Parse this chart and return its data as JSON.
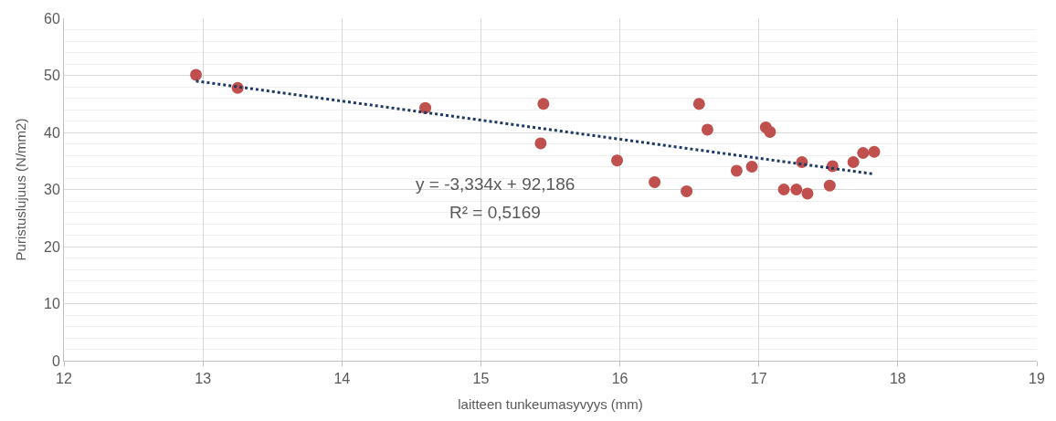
{
  "chart_data": {
    "type": "scatter",
    "xlabel": "laitteen tunkeumasyvyys (mm)",
    "ylabel": "Puristuslujuus (N/mm2)",
    "xlim": [
      12,
      19
    ],
    "xticks": [
      12,
      13,
      14,
      15,
      16,
      17,
      18,
      19
    ],
    "ylim": [
      0,
      60
    ],
    "yticks": [
      0,
      10,
      20,
      30,
      40,
      50,
      60
    ],
    "grid": true,
    "legend": false,
    "annotations": [
      "y = -3,334x + 92,186",
      "R² = 0,5169"
    ],
    "series": [
      {
        "color": "#c0504d",
        "marker": "circle",
        "x": [
          12.95,
          13.25,
          14.6,
          15.45,
          15.43,
          15.98,
          16.25,
          16.48,
          16.57,
          16.63,
          16.84,
          16.95,
          17.05,
          17.08,
          17.18,
          17.27,
          17.31,
          17.35,
          17.51,
          17.53,
          17.68,
          17.75,
          17.83
        ],
        "values": [
          50.1,
          47.8,
          44.3,
          45.0,
          38.1,
          35.1,
          31.3,
          29.7,
          45.0,
          40.5,
          33.3,
          34.0,
          40.9,
          40.1,
          30.0,
          30.0,
          34.8,
          29.3,
          30.7,
          34.1,
          34.8,
          36.4,
          36.6
        ]
      },
      {
        "type": "line",
        "color": "#1f3864",
        "line_style": "dotted",
        "marker": "none",
        "x": [
          12.95,
          17.83
        ],
        "values": [
          49.0,
          32.7
        ]
      }
    ]
  }
}
